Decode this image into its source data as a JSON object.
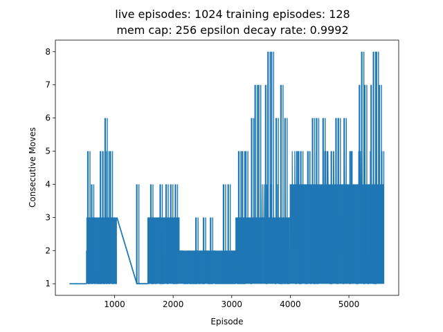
{
  "chart_data": {
    "type": "line",
    "title": [
      "live episodes: 1024 training episodes: 128",
      "mem cap: 256 epsilon decay rate: 0.9992"
    ],
    "xlabel": "Episode",
    "ylabel": "Consecutive Moves",
    "xlim": [
      -10,
      5850
    ],
    "ylim": [
      0.65,
      8.35
    ],
    "xticks": [
      1000,
      2000,
      3000,
      4000,
      5000
    ],
    "xtick_labels": [
      "1000",
      "2000",
      "3000",
      "4000",
      "5000"
    ],
    "yticks": [
      1,
      2,
      3,
      4,
      5,
      6,
      7,
      8
    ],
    "ytick_labels": [
      "1",
      "2",
      "3",
      "4",
      "5",
      "6",
      "7",
      "8"
    ],
    "grid": false,
    "color": "#1f77b4",
    "series": [
      {
        "name": "",
        "segments": [
          {
            "x_start": 230,
            "x_end": 520,
            "min": 1,
            "max": 1,
            "fill_max": 1
          },
          {
            "x_start": 520,
            "x_end": 1040,
            "min": 1,
            "max": 3,
            "fill_max": 3
          },
          {
            "x_start": 1560,
            "x_end": 2110,
            "min": 1,
            "max": 3,
            "fill_max": 3
          },
          {
            "x_start": 2110,
            "x_end": 3070,
            "min": 1,
            "max": 2,
            "fill_max": 2
          },
          {
            "x_start": 3070,
            "x_end": 3500,
            "min": 1,
            "max": 3,
            "fill_max": 3
          },
          {
            "x_start": 3500,
            "x_end": 3990,
            "min": 1,
            "max": 4,
            "fill_max": 3
          },
          {
            "x_start": 3990,
            "x_end": 5600,
            "min": 1,
            "max": 5,
            "fill_max": 4
          }
        ],
        "connectors": [
          {
            "x": [
              1040,
              1380,
              1560
            ],
            "y": [
              3,
              1,
              1
            ]
          }
        ],
        "spikes": [
          {
            "x": 545,
            "y": 5
          },
          {
            "x": 610,
            "y": 4
          },
          {
            "x": 760,
            "y": 5
          },
          {
            "x": 800,
            "y": 5
          },
          {
            "x": 840,
            "y": 6
          },
          {
            "x": 870,
            "y": 5
          },
          {
            "x": 930,
            "y": 5
          },
          {
            "x": 1380,
            "y": 4
          },
          {
            "x": 1620,
            "y": 4
          },
          {
            "x": 1780,
            "y": 4
          },
          {
            "x": 1880,
            "y": 4
          },
          {
            "x": 1960,
            "y": 4
          },
          {
            "x": 2040,
            "y": 4
          },
          {
            "x": 2390,
            "y": 3
          },
          {
            "x": 2520,
            "y": 3
          },
          {
            "x": 2640,
            "y": 3
          },
          {
            "x": 2860,
            "y": 4
          },
          {
            "x": 2940,
            "y": 4
          },
          {
            "x": 3120,
            "y": 5
          },
          {
            "x": 3180,
            "y": 5
          },
          {
            "x": 3240,
            "y": 5
          },
          {
            "x": 3340,
            "y": 6
          },
          {
            "x": 3400,
            "y": 7
          },
          {
            "x": 3460,
            "y": 7
          },
          {
            "x": 3580,
            "y": 7
          },
          {
            "x": 3620,
            "y": 8
          },
          {
            "x": 3680,
            "y": 8
          },
          {
            "x": 3760,
            "y": 6
          },
          {
            "x": 3840,
            "y": 7
          },
          {
            "x": 3910,
            "y": 6
          },
          {
            "x": 4110,
            "y": 5
          },
          {
            "x": 4180,
            "y": 5
          },
          {
            "x": 4300,
            "y": 5
          },
          {
            "x": 4380,
            "y": 6
          },
          {
            "x": 4450,
            "y": 6
          },
          {
            "x": 4560,
            "y": 6
          },
          {
            "x": 4600,
            "y": 5
          },
          {
            "x": 4700,
            "y": 5
          },
          {
            "x": 4780,
            "y": 6
          },
          {
            "x": 4820,
            "y": 6
          },
          {
            "x": 4920,
            "y": 6
          },
          {
            "x": 5020,
            "y": 5
          },
          {
            "x": 5180,
            "y": 7
          },
          {
            "x": 5220,
            "y": 8
          },
          {
            "x": 5270,
            "y": 7
          },
          {
            "x": 5380,
            "y": 7
          },
          {
            "x": 5420,
            "y": 8
          },
          {
            "x": 5470,
            "y": 8
          },
          {
            "x": 5520,
            "y": 7
          },
          {
            "x": 5560,
            "y": 5
          }
        ]
      }
    ]
  }
}
